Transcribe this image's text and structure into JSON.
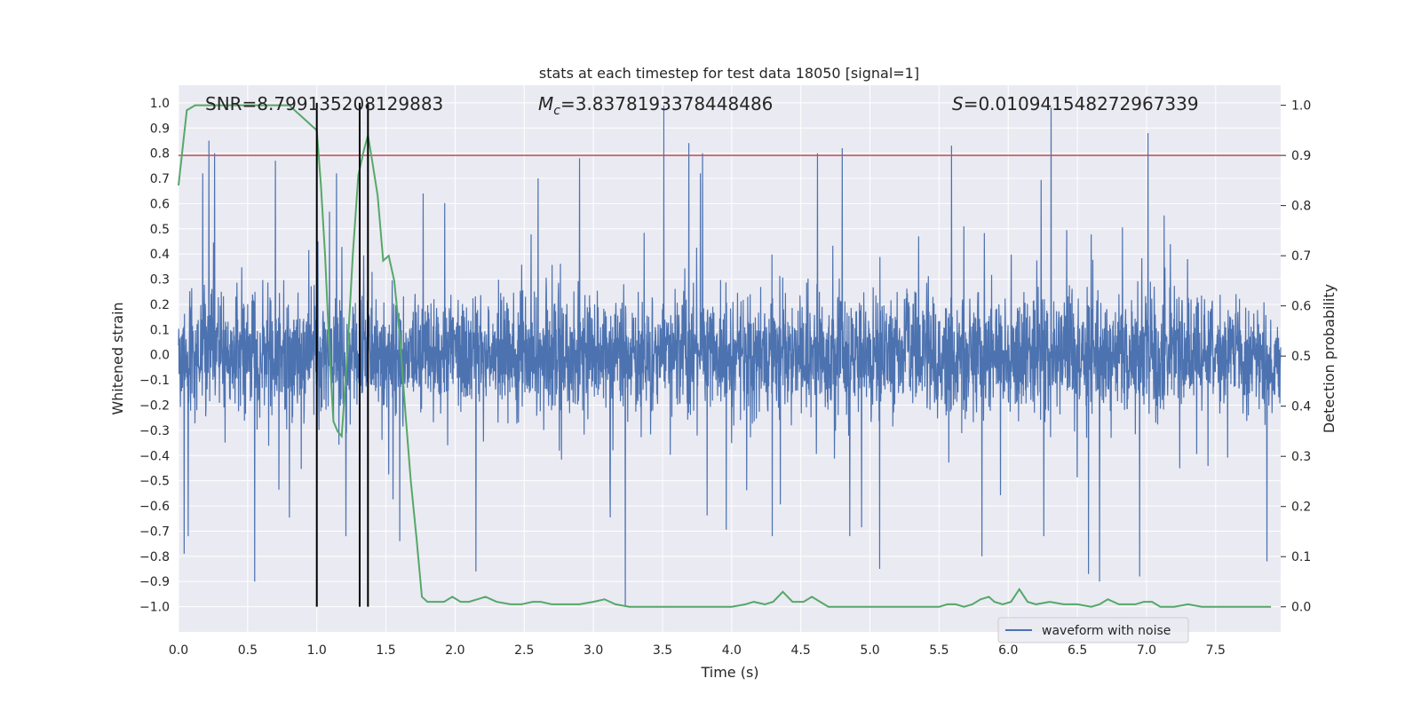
{
  "chart_data": {
    "type": "line",
    "title": "stats at each timestep for test data 18050 [signal=1]",
    "xlabel": "Time (s)",
    "ylabel_left": "Whitened strain",
    "ylabel_right": "Detection probability",
    "xlim": [
      0.0,
      7.97
    ],
    "ylim_left": [
      -1.1,
      1.07
    ],
    "ylim_right": [
      -0.05,
      1.04
    ],
    "x_ticks": [
      "0.0",
      "0.5",
      "1.0",
      "1.5",
      "2.0",
      "2.5",
      "3.0",
      "3.5",
      "4.0",
      "4.5",
      "5.0",
      "5.5",
      "6.0",
      "6.5",
      "7.0",
      "7.5"
    ],
    "y_left_ticks": [
      "1.0",
      "0.9",
      "0.8",
      "0.7",
      "0.6",
      "0.5",
      "0.4",
      "0.3",
      "0.2",
      "0.1",
      "0.0",
      "−0.1",
      "−0.2",
      "−0.3",
      "−0.4",
      "−0.5",
      "−0.6",
      "−0.7",
      "−0.8",
      "−0.9",
      "−1.0"
    ],
    "y_right_ticks": [
      "1.0",
      "0.9",
      "0.8",
      "0.7",
      "0.6",
      "0.5",
      "0.4",
      "0.3",
      "0.2",
      "0.1",
      "0.0"
    ],
    "grid": true,
    "legend": {
      "entries": [
        "waveform with noise"
      ],
      "placement": "lower-right"
    },
    "annotations": {
      "snr": "SNR=8.799135208129883",
      "mc_symbol": "M",
      "mc_sub": "c",
      "mc_value": "=3.8378193378448486",
      "s_symbol": "S",
      "s_value": "=0.010941548272967339"
    },
    "threshold": {
      "y_right": 0.9,
      "color": "#c44e52"
    },
    "event_lines_x": [
      1.0,
      1.31,
      1.37
    ],
    "event_line_range_left": [
      -1.0,
      1.0
    ],
    "series": [
      {
        "name": "waveform with noise",
        "color": "#4c72b0",
        "axis": "left",
        "kind": "noise",
        "samples": 4096,
        "typical_envelope": [
          -0.4,
          0.38
        ],
        "spikes": [
          [
            0.22,
            0.85
          ],
          [
            0.26,
            0.8
          ],
          [
            0.04,
            -0.79
          ],
          [
            0.07,
            -0.72
          ],
          [
            0.55,
            -0.9
          ],
          [
            0.7,
            0.77
          ],
          [
            1.21,
            -0.72
          ],
          [
            1.6,
            -0.74
          ],
          [
            1.77,
            0.64
          ],
          [
            2.15,
            -0.86
          ],
          [
            2.6,
            0.7
          ],
          [
            2.9,
            0.78
          ],
          [
            3.23,
            -1.0
          ],
          [
            3.51,
            0.99
          ],
          [
            3.69,
            0.84
          ],
          [
            3.79,
            0.8
          ],
          [
            4.62,
            0.8
          ],
          [
            4.8,
            0.82
          ],
          [
            5.07,
            -0.85
          ],
          [
            5.59,
            0.83
          ],
          [
            5.81,
            -0.8
          ],
          [
            6.31,
            0.98
          ],
          [
            6.58,
            -0.87
          ],
          [
            6.66,
            -0.9
          ],
          [
            6.95,
            -0.88
          ],
          [
            7.01,
            0.88
          ],
          [
            7.87,
            -0.82
          ]
        ]
      },
      {
        "name": "detection probability",
        "color": "#55a868",
        "axis": "right",
        "x": [
          0.0,
          0.06,
          0.12,
          0.2,
          0.4,
          0.6,
          0.8,
          0.88,
          0.96,
          1.0,
          1.03,
          1.06,
          1.09,
          1.12,
          1.15,
          1.18,
          1.22,
          1.26,
          1.3,
          1.34,
          1.37,
          1.4,
          1.44,
          1.48,
          1.52,
          1.56,
          1.6,
          1.64,
          1.68,
          1.72,
          1.76,
          1.8,
          1.86,
          1.92,
          1.98,
          2.04,
          2.1,
          2.16,
          2.22,
          2.3,
          2.4,
          2.48,
          2.56,
          2.62,
          2.7,
          2.8,
          2.9,
          3.0,
          3.08,
          3.16,
          3.26,
          3.4,
          3.5,
          3.6,
          3.7,
          3.8,
          3.9,
          4.0,
          4.1,
          4.16,
          4.24,
          4.3,
          4.37,
          4.44,
          4.52,
          4.58,
          4.64,
          4.7,
          4.78,
          4.86,
          5.0,
          5.2,
          5.4,
          5.5,
          5.56,
          5.62,
          5.68,
          5.74,
          5.8,
          5.86,
          5.9,
          5.96,
          6.02,
          6.08,
          6.14,
          6.2,
          6.3,
          6.4,
          6.5,
          6.6,
          6.66,
          6.72,
          6.8,
          6.86,
          6.92,
          6.98,
          7.04,
          7.1,
          7.2,
          7.3,
          7.4,
          7.5,
          7.6,
          7.7,
          7.8,
          7.9
        ],
        "y": [
          0.84,
          0.99,
          1.0,
          1.0,
          1.0,
          1.0,
          1.0,
          0.98,
          0.96,
          0.95,
          0.84,
          0.7,
          0.52,
          0.37,
          0.35,
          0.34,
          0.5,
          0.7,
          0.86,
          0.91,
          0.94,
          0.89,
          0.82,
          0.69,
          0.7,
          0.65,
          0.54,
          0.39,
          0.25,
          0.14,
          0.02,
          0.01,
          0.01,
          0.01,
          0.02,
          0.01,
          0.01,
          0.015,
          0.02,
          0.01,
          0.005,
          0.005,
          0.01,
          0.01,
          0.005,
          0.005,
          0.005,
          0.01,
          0.015,
          0.005,
          0.0,
          0.0,
          0.0,
          0.0,
          0.0,
          0.0,
          0.0,
          0.0,
          0.005,
          0.01,
          0.005,
          0.01,
          0.03,
          0.01,
          0.01,
          0.02,
          0.01,
          0.0,
          0.0,
          0.0,
          0.0,
          0.0,
          0.0,
          0.0,
          0.005,
          0.005,
          0.0,
          0.005,
          0.015,
          0.02,
          0.01,
          0.005,
          0.01,
          0.035,
          0.01,
          0.005,
          0.01,
          0.005,
          0.005,
          0.0,
          0.005,
          0.015,
          0.005,
          0.005,
          0.005,
          0.01,
          0.01,
          0.0,
          0.0,
          0.005,
          0.0,
          0.0,
          0.0,
          0.0,
          0.0,
          0.0
        ]
      }
    ]
  }
}
